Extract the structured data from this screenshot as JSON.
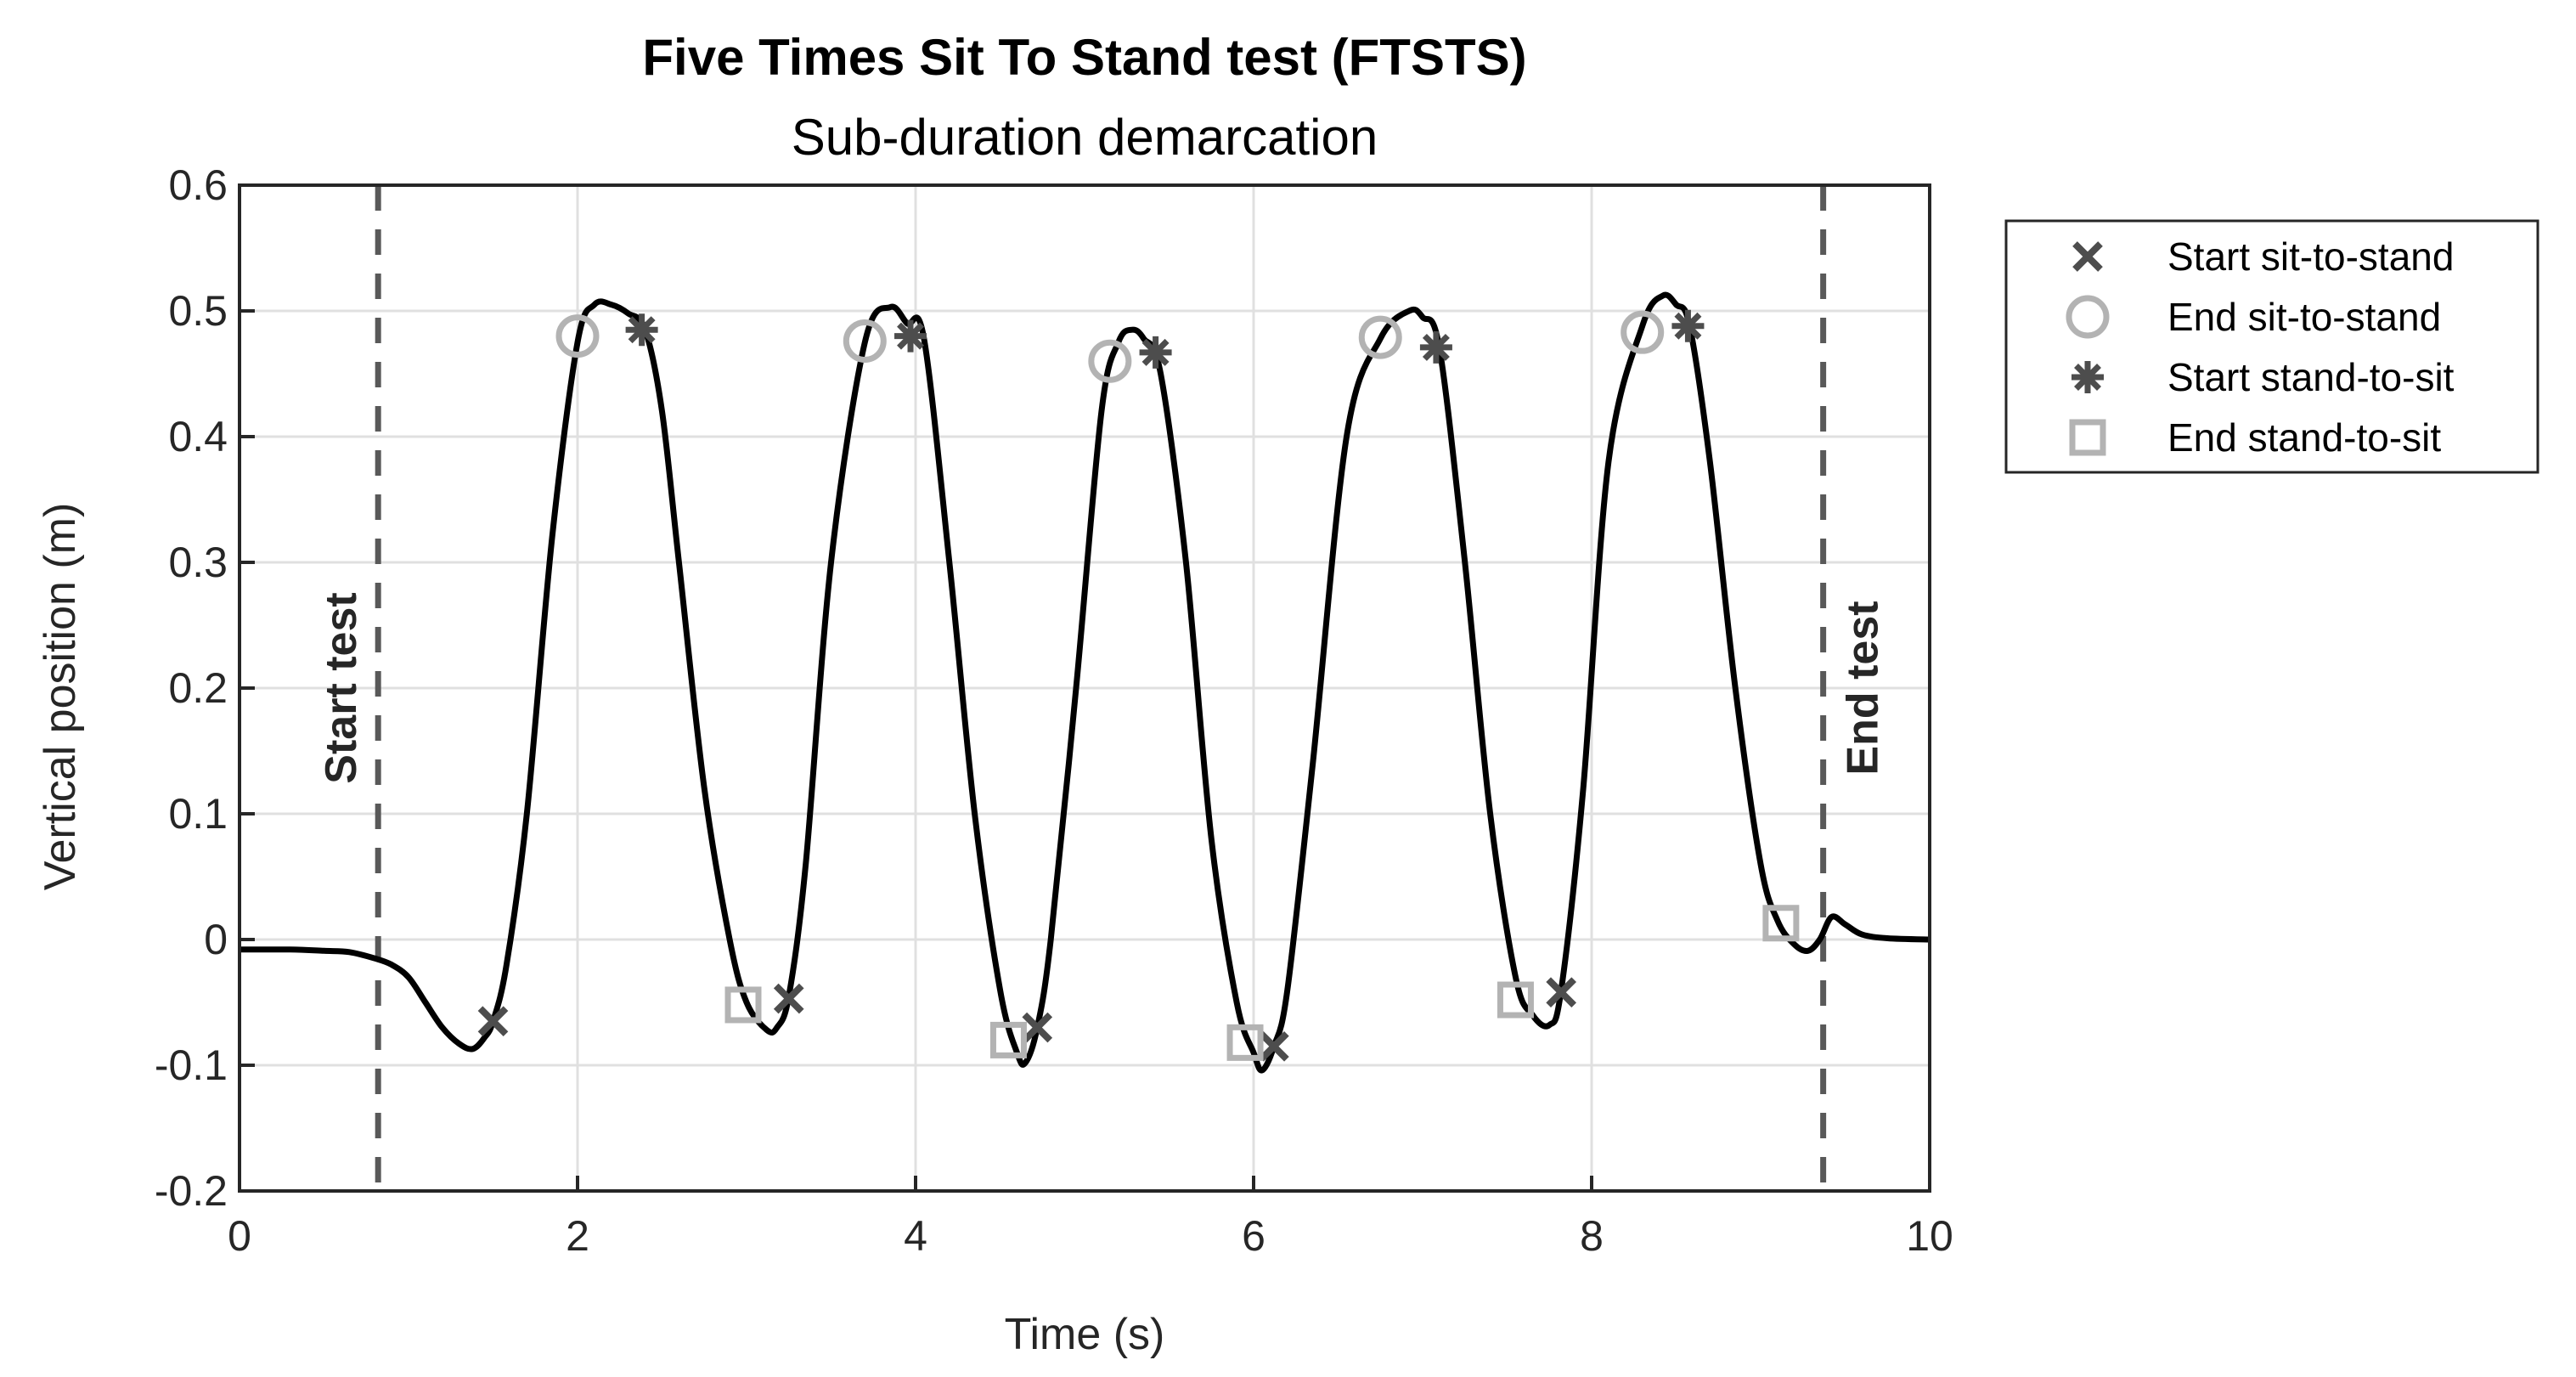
{
  "chart_data": {
    "type": "line",
    "title": "Five Times Sit To Stand test (FTSTS)",
    "subtitle": "Sub-duration demarcation",
    "xlabel": "Time (s)",
    "ylabel": "Vertical position (m)",
    "xlim": [
      0,
      10
    ],
    "ylim": [
      -0.2,
      0.6
    ],
    "xticks": [
      0,
      2,
      4,
      6,
      8,
      10
    ],
    "yticks": [
      -0.2,
      -0.1,
      0,
      0.1,
      0.2,
      0.3,
      0.4,
      0.5,
      0.6
    ],
    "grid": true,
    "legend_position": "outside-top-right",
    "colors": {
      "curve": "#000000",
      "dark_marker": "#4d4d4d",
      "light_marker": "#b3b3b3",
      "test_line": "#595959",
      "grid": "#e0e0e0"
    },
    "curve": {
      "x": [
        0,
        0.3,
        0.5,
        0.65,
        0.8,
        0.9,
        1.0,
        1.1,
        1.2,
        1.3,
        1.38,
        1.45,
        1.5,
        1.58,
        1.7,
        1.85,
        2.0,
        2.1,
        2.2,
        2.3,
        2.4,
        2.5,
        2.6,
        2.75,
        2.9,
        3.0,
        3.12,
        3.18,
        3.25,
        3.35,
        3.5,
        3.7,
        3.85,
        3.95,
        4.05,
        4.2,
        4.35,
        4.5,
        4.6,
        4.65,
        4.72,
        4.8,
        4.95,
        5.1,
        5.2,
        5.28,
        5.35,
        5.45,
        5.6,
        5.75,
        5.9,
        6.0,
        6.05,
        6.12,
        6.2,
        6.35,
        6.55,
        6.75,
        6.92,
        7.0,
        7.1,
        7.25,
        7.4,
        7.55,
        7.65,
        7.75,
        7.82,
        7.95,
        8.1,
        8.3,
        8.42,
        8.5,
        8.58,
        8.7,
        8.85,
        9.0,
        9.1,
        9.2,
        9.28,
        9.35,
        9.42,
        9.5,
        9.6,
        9.75,
        10.0
      ],
      "y": [
        -0.008,
        -0.008,
        -0.009,
        -0.01,
        -0.015,
        -0.02,
        -0.03,
        -0.05,
        -0.07,
        -0.083,
        -0.087,
        -0.078,
        -0.065,
        -0.02,
        0.1,
        0.32,
        0.475,
        0.505,
        0.505,
        0.498,
        0.485,
        0.42,
        0.3,
        0.12,
        0.0,
        -0.05,
        -0.072,
        -0.07,
        -0.045,
        0.06,
        0.3,
        0.475,
        0.503,
        0.49,
        0.478,
        0.3,
        0.1,
        -0.04,
        -0.09,
        -0.098,
        -0.07,
        0.0,
        0.2,
        0.42,
        0.475,
        0.485,
        0.478,
        0.45,
        0.3,
        0.08,
        -0.05,
        -0.09,
        -0.104,
        -0.085,
        -0.04,
        0.14,
        0.4,
        0.478,
        0.5,
        0.495,
        0.47,
        0.3,
        0.1,
        -0.03,
        -0.06,
        -0.068,
        -0.04,
        0.12,
        0.38,
        0.488,
        0.512,
        0.505,
        0.488,
        0.38,
        0.2,
        0.06,
        0.015,
        -0.004,
        -0.009,
        0.0,
        0.018,
        0.012,
        0.004,
        0.001,
        0.0
      ]
    },
    "events": {
      "start_sit_to_stand": [
        [
          1.5,
          -0.065
        ],
        [
          3.25,
          -0.047
        ],
        [
          4.72,
          -0.07
        ],
        [
          6.12,
          -0.085
        ],
        [
          7.82,
          -0.042
        ]
      ],
      "end_sit_to_stand": [
        [
          2.0,
          0.48
        ],
        [
          3.7,
          0.476
        ],
        [
          5.15,
          0.46
        ],
        [
          6.75,
          0.479
        ],
        [
          8.3,
          0.483
        ]
      ],
      "start_stand_to_sit": [
        [
          2.38,
          0.485
        ],
        [
          3.97,
          0.48
        ],
        [
          5.42,
          0.467
        ],
        [
          7.08,
          0.471
        ],
        [
          8.57,
          0.488
        ]
      ],
      "end_stand_to_sit": [
        [
          2.98,
          -0.052
        ],
        [
          4.55,
          -0.08
        ],
        [
          5.95,
          -0.082
        ],
        [
          7.55,
          -0.048
        ],
        [
          9.12,
          0.013
        ]
      ]
    },
    "test_lines": [
      {
        "x": 0.82,
        "label": "Start test",
        "label_side": "left",
        "label_y": 0.2
      },
      {
        "x": 9.37,
        "label": "End test",
        "label_side": "right",
        "label_y": 0.2
      }
    ],
    "legend": [
      {
        "key": "start_sit_to_stand",
        "label": "Start sit-to-stand",
        "marker": "x"
      },
      {
        "key": "end_sit_to_stand",
        "label": "End sit-to-stand",
        "marker": "circle"
      },
      {
        "key": "start_stand_to_sit",
        "label": "Start stand-to-sit",
        "marker": "asterisk"
      },
      {
        "key": "end_stand_to_sit",
        "label": "End stand-to-sit",
        "marker": "square"
      }
    ]
  }
}
